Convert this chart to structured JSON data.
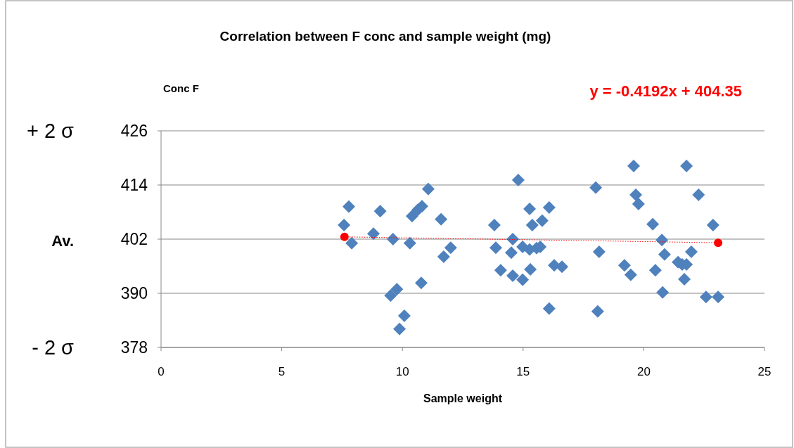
{
  "chart_data": {
    "type": "scatter",
    "title": "Correlation between F conc and sample weight (mg)",
    "xlabel": "Sample weight",
    "ylabel": "Conc F",
    "xlim": [
      0,
      25
    ],
    "xticks": [
      0,
      5,
      10,
      15,
      20,
      25
    ],
    "ylim": [
      378,
      426
    ],
    "yticks": [
      378,
      390,
      402,
      414,
      426
    ],
    "grid": "y",
    "marker": "diamond",
    "annotations": [
      "+ 2 σ",
      "Av.",
      "- 2 σ",
      "y = -0.4192x + 404.35"
    ],
    "series": [
      {
        "color": "#4f81bd",
        "x": [
          7.58,
          7.78,
          7.9,
          8.8,
          9.08,
          9.61,
          9.51,
          9.77,
          9.88,
          10.08,
          10.31,
          10.4,
          10.64,
          10.81,
          10.78,
          11.07,
          11.6,
          11.71,
          12.0,
          13.81,
          13.87,
          14.07,
          14.57,
          14.51,
          14.57,
          14.8,
          14.98,
          14.98,
          15.27,
          15.27,
          15.3,
          15.38,
          15.56,
          15.71,
          15.79,
          16.08,
          16.08,
          16.29,
          16.61,
          18.01,
          18.09,
          18.15,
          19.2,
          19.46,
          19.58,
          19.67,
          19.78,
          20.37,
          20.48,
          20.75,
          20.86,
          20.78,
          21.42,
          21.59,
          21.77,
          21.68,
          21.77,
          21.97,
          22.27,
          22.58,
          22.87,
          23.08
        ],
        "values": [
          405.1,
          409.2,
          401.1,
          403.2,
          408.2,
          402.0,
          389.5,
          390.9,
          382.1,
          385.0,
          401.1,
          407.1,
          408.5,
          409.3,
          392.3,
          413.1,
          406.4,
          398.1,
          400.1,
          405.1,
          400.1,
          395.1,
          402.0,
          399.0,
          393.9,
          415.1,
          400.3,
          393.0,
          399.7,
          408.7,
          395.3,
          405.1,
          400.0,
          400.3,
          406.1,
          409.0,
          386.6,
          396.2,
          395.9,
          413.4,
          386.0,
          399.2,
          396.2,
          394.1,
          418.2,
          411.8,
          409.8,
          405.3,
          395.1,
          401.8,
          398.6,
          390.2,
          396.9,
          396.4,
          396.4,
          393.1,
          418.2,
          399.2,
          411.8,
          389.2,
          405.1,
          389.2
        ]
      },
      {
        "type": "line",
        "color": "#ff0000",
        "marker": "circle",
        "line_style": "dotted",
        "x": [
          7.6,
          23.08
        ],
        "values": [
          402.5,
          401.2
        ]
      }
    ]
  }
}
